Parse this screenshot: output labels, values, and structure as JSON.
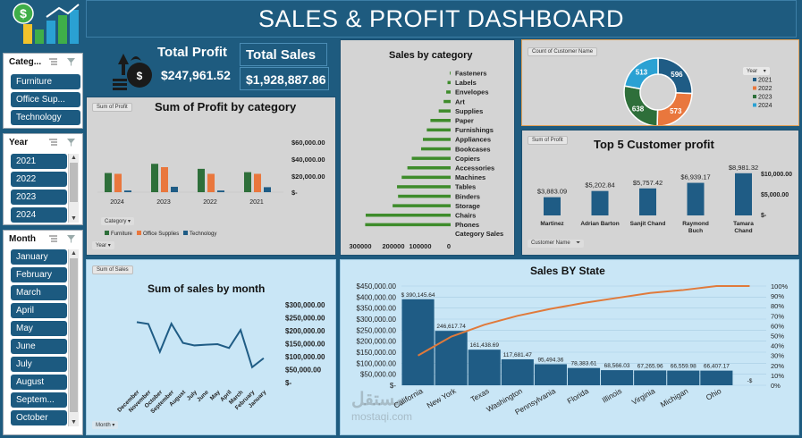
{
  "title": "SALES & PROFIT DASHBOARD",
  "kpis": {
    "profit_label": "Total Profit",
    "profit_value": "$247,961.52",
    "sales_label": "Total Sales",
    "sales_value": "$1,928,887.86"
  },
  "slicers": {
    "category": {
      "title": "Categ...",
      "items": [
        "Furniture",
        "Office Sup...",
        "Technology"
      ]
    },
    "year": {
      "title": "Year",
      "items": [
        "2021",
        "2022",
        "2023",
        "2024"
      ]
    },
    "month": {
      "title": "Month",
      "items": [
        "January",
        "February",
        "March",
        "April",
        "May",
        "June",
        "July",
        "August",
        "Septem...",
        "October"
      ]
    }
  },
  "profit_chart": {
    "tag": "Sum of Profit",
    "field_category": "Category",
    "field_year": "Year",
    "legend": [
      "Furniture",
      "Office Supplies",
      "Technology"
    ]
  },
  "sales_cat_chart": {
    "watermark": "mostaqi.com",
    "watermark_ar": "مستقل"
  },
  "customer_count": {
    "tag": "Count of Customer Name",
    "legend_title": "Year"
  },
  "top5": {
    "tag": "Sum of Profit",
    "field": "Customer Name"
  },
  "month_chart": {
    "tag": "Sum of Sales",
    "field": "Month"
  },
  "colors": {
    "furniture": "#2e6f3a",
    "office": "#e9773d",
    "technology": "#1f5c85",
    "y2024": "#2aa1d3",
    "navy": "#1e5b7f",
    "green_bar": "#3e8c2b"
  },
  "chart_data": [
    {
      "type": "bar",
      "title": "Sum of Profit by category",
      "categories": [
        "2024",
        "2023",
        "2022",
        "2021"
      ],
      "series": [
        {
          "name": "Furniture",
          "values": [
            23000,
            34000,
            28000,
            24000
          ]
        },
        {
          "name": "Office Supplies",
          "values": [
            22000,
            30000,
            22000,
            22000
          ]
        },
        {
          "name": "Technology",
          "values": [
            2000,
            6500,
            2000,
            6000
          ]
        }
      ],
      "ylim": [
        0,
        60000
      ],
      "yticks": [
        "$60,000.00",
        "$40,000.00",
        "$20,000.00",
        "$-"
      ]
    },
    {
      "type": "bar",
      "title": "Sales by category",
      "orientation": "horizontal",
      "categories": [
        "Fasteners",
        "Labels",
        "Envelopes",
        "Art",
        "Supplies",
        "Paper",
        "Furnishings",
        "Appliances",
        "Bookcases",
        "Copiers",
        "Accessories",
        "Machines",
        "Tables",
        "Binders",
        "Storage",
        "Chairs",
        "Phones"
      ],
      "values": [
        3000,
        12000,
        17000,
        27000,
        46000,
        78000,
        92000,
        107000,
        114000,
        150000,
        167000,
        189000,
        207000,
        203000,
        224000,
        328000,
        330000
      ],
      "xticks": [
        "300000",
        "200000",
        "100000",
        "0"
      ],
      "xlabel": "Category Sales",
      "xlim": [
        0,
        350000
      ]
    },
    {
      "type": "pie",
      "title": "",
      "categories": [
        "2021",
        "2022",
        "2023",
        "2024"
      ],
      "values": [
        596,
        573,
        638,
        513
      ]
    },
    {
      "type": "bar",
      "title": "Top 5 Customer profit",
      "categories": [
        "Martinez",
        "Adrian Barton",
        "Sanjit Chand",
        "Raymond Buch",
        "Tamara Chand"
      ],
      "values": [
        3883.09,
        5202.84,
        5757.42,
        6939.17,
        8981.32
      ],
      "labels": [
        "$3,883.09",
        "$5,202.84",
        "$5,757.42",
        "$6,939.17",
        "$8,981.32"
      ],
      "ylim": [
        0,
        10000
      ],
      "yticks": [
        "$10,000.00",
        "$5,000.00",
        "$-"
      ]
    },
    {
      "type": "line",
      "title": "Sum of sales by month",
      "categories": [
        "December",
        "November",
        "October",
        "September",
        "August",
        "July",
        "June",
        "May",
        "April",
        "March",
        "February",
        "January"
      ],
      "values": [
        236000,
        229000,
        120000,
        230000,
        155000,
        145000,
        148000,
        150000,
        135000,
        205000,
        60000,
        95000
      ],
      "ylim": [
        0,
        300000
      ],
      "yticks": [
        "$300,000.00",
        "$250,000.00",
        "$200,000.00",
        "$150,000.00",
        "$100,000.00",
        "$50,000.00",
        "$-"
      ]
    },
    {
      "type": "bar",
      "title": "Sales BY State",
      "categories": [
        "California",
        "New York",
        "Texas",
        "Washington",
        "Pennsylvania",
        "Florida",
        "Illinois",
        "Virginia",
        "Michigan",
        "Ohio",
        ""
      ],
      "values": [
        390145.64,
        246617.74,
        161438.69,
        117681.47,
        95494.36,
        78383.61,
        68566.03,
        67265.96,
        66559.98,
        66407.17,
        0
      ],
      "labels": [
        "$ 390,145.64",
        "246,617.74",
        "161,438.69",
        "117,681.47",
        "95,494.36",
        "78,383.61",
        "68,566.03",
        "67,265.96",
        "66,559.98",
        "66,407.17",
        "-$"
      ],
      "cumulative_pct": [
        30,
        49,
        61,
        70,
        77,
        83,
        88,
        93,
        96,
        100,
        100
      ],
      "ylim": [
        0,
        450000
      ],
      "yticks": [
        "$450,000.00",
        "$400,000.00",
        "$350,000.00",
        "$300,000.00",
        "$250,000.00",
        "$200,000.00",
        "$150,000.00",
        "$100,000.00",
        "$50,000.00",
        "$-"
      ],
      "y2ticks": [
        "100%",
        "90%",
        "80%",
        "70%",
        "60%",
        "50%",
        "40%",
        "30%",
        "20%",
        "10%",
        "0%"
      ]
    }
  ]
}
